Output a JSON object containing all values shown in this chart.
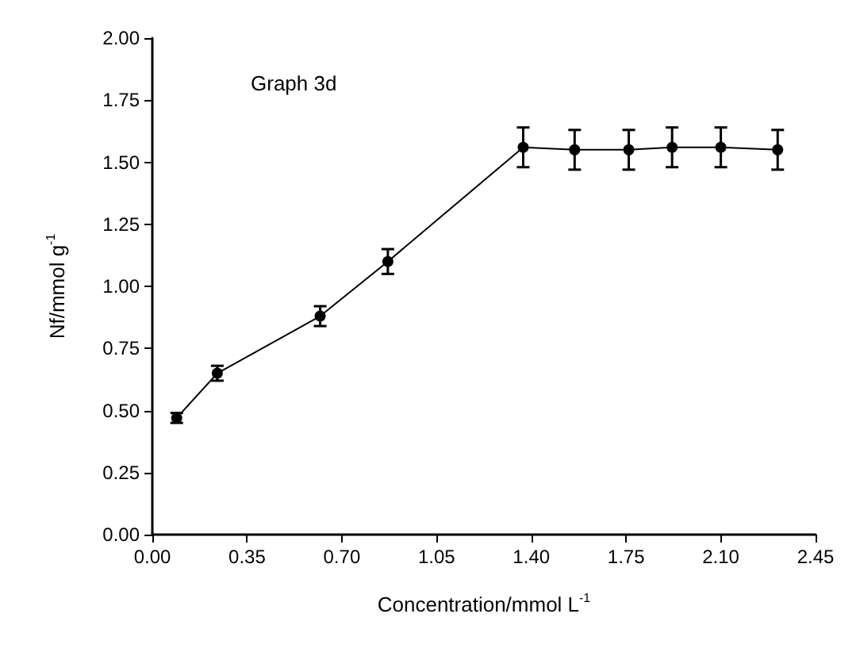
{
  "chart_data": {
    "type": "line",
    "xlabel": "Concentration/mmol L$^{-1}$",
    "ylabel": "Nf/mmol g$^{-1}$",
    "annotations": [
      "Graph 3d"
    ],
    "x": [
      0.09,
      0.24,
      0.62,
      0.87,
      1.37,
      1.56,
      1.76,
      1.92,
      2.1,
      2.31
    ],
    "series": [
      {
        "color": "#000000",
        "values": [
          0.47,
          0.65,
          0.88,
          1.1,
          1.56,
          1.55,
          1.55,
          1.56,
          1.56,
          1.55
        ],
        "errors": [
          0.02,
          0.03,
          0.04,
          0.05,
          0.08,
          0.08,
          0.08,
          0.08,
          0.08,
          0.08
        ]
      }
    ],
    "xlim": [
      0,
      2.45
    ],
    "xticks": [
      {
        "value": 0,
        "label": "0.00"
      },
      {
        "value": 0.35,
        "label": "0.35"
      },
      {
        "value": 0.7,
        "label": "0.70"
      },
      {
        "value": 1.05,
        "label": "1.05"
      },
      {
        "value": 1.4,
        "label": "1.40"
      },
      {
        "value": 1.75,
        "label": "1.75"
      },
      {
        "value": 2.1,
        "label": "2.10"
      },
      {
        "value": 2.45,
        "label": "2.45"
      }
    ],
    "ylim": [
      0,
      2
    ],
    "yticks": [
      {
        "value": 0,
        "label": "0.00"
      },
      {
        "value": 0.25,
        "label": "0.25"
      },
      {
        "value": 0.5,
        "label": "0.50"
      },
      {
        "value": 0.75,
        "label": "0.75"
      },
      {
        "value": 1,
        "label": "1.00"
      },
      {
        "value": 1.25,
        "label": "1.25"
      },
      {
        "value": 1.5,
        "label": "1.50"
      },
      {
        "value": 1.75,
        "label": "1.75"
      },
      {
        "value": 2,
        "label": "2.00"
      }
    ],
    "grid": false,
    "marker": "circle",
    "line_style": "solid"
  }
}
